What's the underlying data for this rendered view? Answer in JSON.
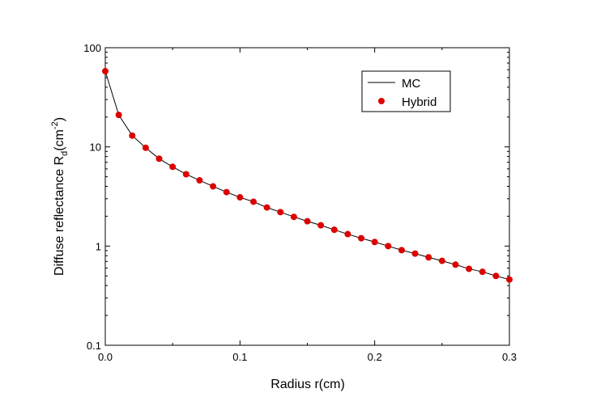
{
  "chart_data": {
    "type": "line",
    "xlabel": "Radius r(cm)",
    "ylabel": {
      "main": "Diffuse reflectance R",
      "subscript": "d",
      "unit_open": "(cm",
      "unit_sup": "-2",
      "unit_close": ")"
    },
    "xlim": [
      0.0,
      0.3
    ],
    "ylim": [
      0.1,
      100
    ],
    "yscale": "log",
    "x_ticks": [
      0.0,
      0.1,
      0.2,
      0.3
    ],
    "x_tick_labels": [
      "0.0",
      "0.1",
      "0.2",
      "0.3"
    ],
    "y_ticks": [
      0.1,
      1,
      10,
      100
    ],
    "y_tick_labels": [
      "0.1",
      "1",
      "10",
      "100"
    ],
    "grid": false,
    "legend_position": "top-right",
    "series": [
      {
        "name": "MC",
        "style": "line",
        "color": "#000000",
        "x": [
          0.0,
          0.01,
          0.02,
          0.03,
          0.04,
          0.05,
          0.06,
          0.07,
          0.08,
          0.09,
          0.1,
          0.11,
          0.12,
          0.13,
          0.14,
          0.15,
          0.16,
          0.17,
          0.18,
          0.19,
          0.2,
          0.21,
          0.22,
          0.23,
          0.24,
          0.25,
          0.26,
          0.27,
          0.28,
          0.29,
          0.3
        ],
        "y": [
          58,
          21,
          13,
          9.8,
          7.6,
          6.3,
          5.3,
          4.6,
          4.0,
          3.5,
          3.1,
          2.8,
          2.45,
          2.2,
          1.97,
          1.78,
          1.62,
          1.46,
          1.32,
          1.2,
          1.1,
          1.0,
          0.91,
          0.84,
          0.77,
          0.71,
          0.65,
          0.59,
          0.55,
          0.5,
          0.46
        ]
      },
      {
        "name": "Hybrid",
        "style": "markers",
        "color": "#dd0000",
        "x": [
          0.0,
          0.01,
          0.02,
          0.03,
          0.04,
          0.05,
          0.06,
          0.07,
          0.08,
          0.09,
          0.1,
          0.11,
          0.12,
          0.13,
          0.14,
          0.15,
          0.16,
          0.17,
          0.18,
          0.19,
          0.2,
          0.21,
          0.22,
          0.23,
          0.24,
          0.25,
          0.26,
          0.27,
          0.28,
          0.29,
          0.3
        ],
        "y": [
          58,
          21,
          13,
          9.8,
          7.6,
          6.3,
          5.3,
          4.6,
          4.0,
          3.5,
          3.1,
          2.8,
          2.45,
          2.2,
          1.97,
          1.78,
          1.62,
          1.46,
          1.32,
          1.2,
          1.1,
          1.0,
          0.91,
          0.84,
          0.77,
          0.71,
          0.65,
          0.59,
          0.55,
          0.5,
          0.46
        ]
      }
    ]
  }
}
